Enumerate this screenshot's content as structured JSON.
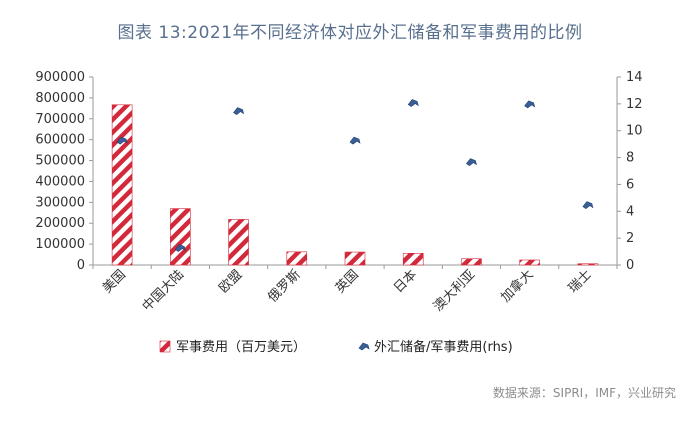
{
  "title": "图表 13:2021年不同经济体对应外汇储备和军事费用的比例",
  "source": "数据来源：SIPRI，IMF，兴业研究",
  "colors": {
    "bar_stripe": "#d2293b",
    "marker": "#3a5f96",
    "axis": "#9a9a9a",
    "title": "#58708e"
  },
  "chart_data": {
    "type": "bar",
    "categories": [
      "美国",
      "中国大陆",
      "欧盟",
      "俄罗斯",
      "英国",
      "日本",
      "澳大利亚",
      "加拿大",
      "瑞士"
    ],
    "series": [
      {
        "name": "军事费用（百万美元）",
        "kind": "bar",
        "axis": "left",
        "values": [
          767000,
          270000,
          218000,
          63000,
          62000,
          56000,
          30000,
          24000,
          6000
        ]
      },
      {
        "name": "外汇储备/军事费用(rhs)",
        "kind": "scatter",
        "axis": "right",
        "values": [
          9.3,
          1.3,
          11.5,
          null,
          9.3,
          12.1,
          7.7,
          12.0,
          4.5
        ]
      }
    ],
    "y_left": {
      "min": 0,
      "max": 900000,
      "ticks": [
        "0",
        "100000",
        "200000",
        "300000",
        "400000",
        "500000",
        "600000",
        "700000",
        "800000",
        "900000"
      ]
    },
    "y_right": {
      "min": 0,
      "max": 14,
      "ticks": [
        "0",
        "2",
        "4",
        "6",
        "8",
        "10",
        "12",
        "14"
      ]
    },
    "legend_position": "bottom"
  }
}
